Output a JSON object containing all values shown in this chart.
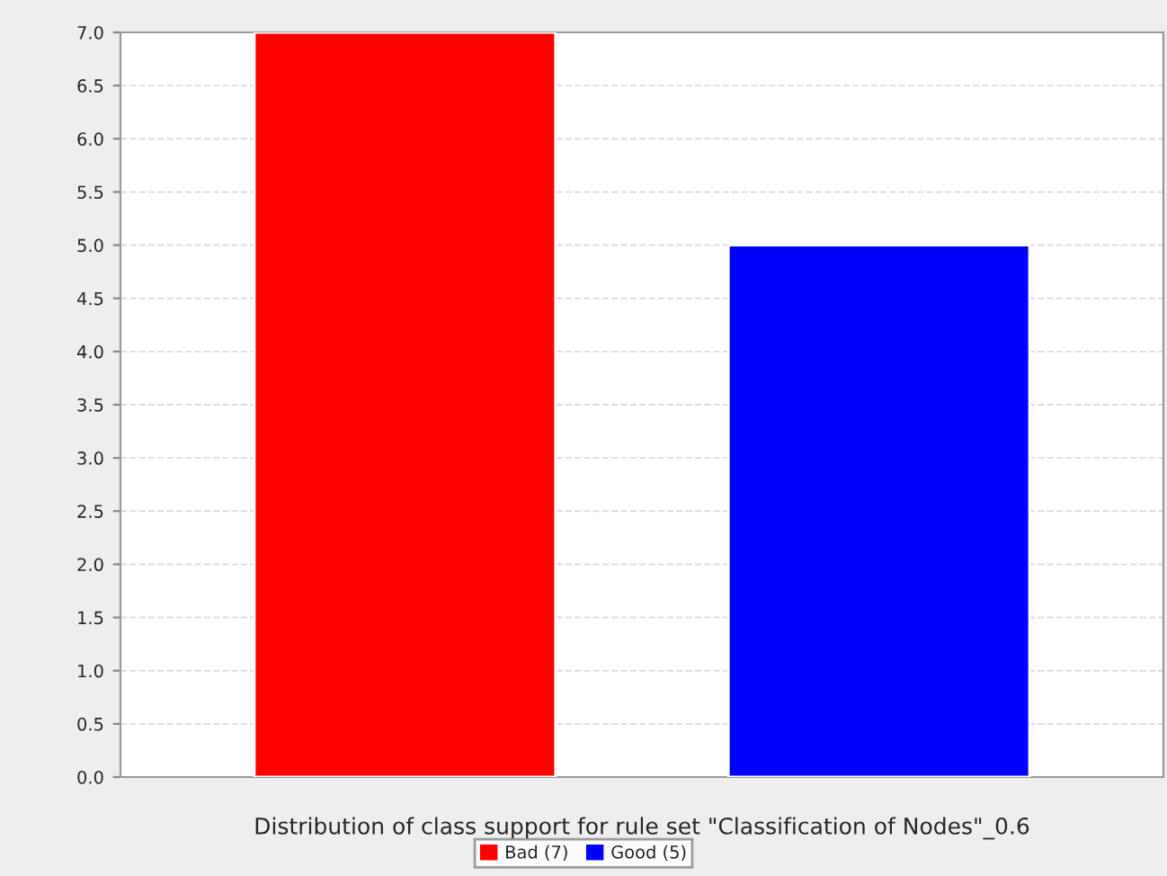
{
  "chart_data": {
    "type": "bar",
    "xlabel": "Distribution of class support for rule set \"Classification of Nodes\"_0.6",
    "categories": [
      null,
      null
    ],
    "series": [
      {
        "name": "Bad (7)",
        "color": "#ff0000",
        "values": [
          7,
          null
        ]
      },
      {
        "name": "Good (5)",
        "color": "#0000ff",
        "values": [
          null,
          5
        ]
      }
    ],
    "ylim": [
      0,
      7
    ],
    "yticks": [
      {
        "value": 0,
        "label": "0.0"
      },
      {
        "value": 0.5,
        "label": "0.5"
      },
      {
        "value": 1,
        "label": "1.0"
      },
      {
        "value": 1.5,
        "label": "1.5"
      },
      {
        "value": 2,
        "label": "2.0"
      },
      {
        "value": 2.5,
        "label": "2.5"
      },
      {
        "value": 3,
        "label": "3.0"
      },
      {
        "value": 3.5,
        "label": "3.5"
      },
      {
        "value": 4,
        "label": "4.0"
      },
      {
        "value": 4.5,
        "label": "4.5"
      },
      {
        "value": 5,
        "label": "5.0"
      },
      {
        "value": 5.5,
        "label": "5.5"
      },
      {
        "value": 6,
        "label": "6.0"
      },
      {
        "value": 6.5,
        "label": "6.5"
      },
      {
        "value": 7,
        "label": "7.0"
      }
    ],
    "grid": "y",
    "legend": "bottom",
    "tick_labels": "y"
  }
}
